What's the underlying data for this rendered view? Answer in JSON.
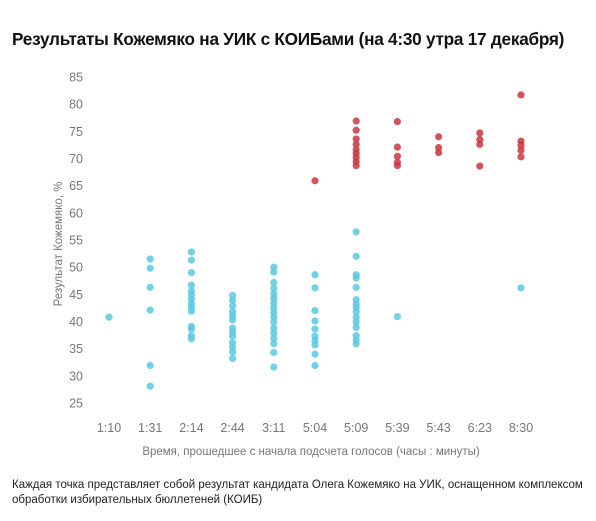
{
  "title": "Результаты Кожемяко на УИК с КОИБами (на 4:30 утра 17 декабря)",
  "note": "Каждая точка представляет собой результат кандидата Олега Кожемяко на УИК, оснащенном комплексом обработки избирательных бюллетеней (КОИБ)",
  "colors": {
    "low": "#5bc8e0",
    "high": "#c9373f"
  },
  "chart_data": {
    "type": "scatter",
    "title": "Результаты Кожемяко на УИК с КОИБами (на 4:30 утра 17 декабря)",
    "xlabel": "Время, прошедшее с начала подсчета голосов (часы : минуты)",
    "ylabel": "Результат Кожемяко, %",
    "categories": [
      "1:10",
      "1:31",
      "2:14",
      "2:44",
      "3:11",
      "5:04",
      "5:09",
      "5:39",
      "5:43",
      "6:23",
      "8:30"
    ],
    "ylim": [
      25,
      85
    ],
    "yticks": [
      25,
      30,
      35,
      40,
      45,
      50,
      55,
      60,
      65,
      70,
      75,
      80,
      85
    ],
    "grid": false,
    "legend": "none",
    "series": [
      {
        "color": "#5bc8e0",
        "points": [
          [
            "1:10",
            40.8
          ],
          [
            "1:31",
            51.5
          ],
          [
            "1:31",
            49.8
          ],
          [
            "1:31",
            46.3
          ],
          [
            "1:31",
            42.1
          ],
          [
            "1:31",
            31.9
          ],
          [
            "1:31",
            28.1
          ],
          [
            "2:14",
            52.8
          ],
          [
            "2:14",
            51.3
          ],
          [
            "2:14",
            49.0
          ],
          [
            "2:14",
            46.7
          ],
          [
            "2:14",
            45.6
          ],
          [
            "2:14",
            44.9
          ],
          [
            "2:14",
            44.1
          ],
          [
            "2:14",
            43.3
          ],
          [
            "2:14",
            42.6
          ],
          [
            "2:14",
            41.9
          ],
          [
            "2:14",
            39.1
          ],
          [
            "2:14",
            38.6
          ],
          [
            "2:14",
            37.4
          ],
          [
            "2:14",
            36.8
          ],
          [
            "2:44",
            44.8
          ],
          [
            "2:44",
            43.9
          ],
          [
            "2:44",
            42.9
          ],
          [
            "2:44",
            41.8
          ],
          [
            "2:44",
            41.0
          ],
          [
            "2:44",
            40.3
          ],
          [
            "2:44",
            38.8
          ],
          [
            "2:44",
            38.1
          ],
          [
            "2:44",
            37.3
          ],
          [
            "2:44",
            36.1
          ],
          [
            "2:44",
            35.2
          ],
          [
            "2:44",
            34.4
          ],
          [
            "2:44",
            33.2
          ],
          [
            "3:11",
            50.0
          ],
          [
            "3:11",
            49.1
          ],
          [
            "3:11",
            47.2
          ],
          [
            "3:11",
            46.1
          ],
          [
            "3:11",
            45.1
          ],
          [
            "3:11",
            44.3
          ],
          [
            "3:11",
            43.4
          ],
          [
            "3:11",
            42.5
          ],
          [
            "3:11",
            41.6
          ],
          [
            "3:11",
            40.8
          ],
          [
            "3:11",
            39.9
          ],
          [
            "3:11",
            38.8
          ],
          [
            "3:11",
            37.9
          ],
          [
            "3:11",
            36.9
          ],
          [
            "3:11",
            35.9
          ],
          [
            "3:11",
            34.3
          ],
          [
            "3:11",
            31.6
          ],
          [
            "5:04",
            48.6
          ],
          [
            "5:04",
            46.2
          ],
          [
            "5:04",
            42.0
          ],
          [
            "5:04",
            40.1
          ],
          [
            "5:04",
            38.6
          ],
          [
            "5:04",
            37.3
          ],
          [
            "5:04",
            36.5
          ],
          [
            "5:04",
            35.7
          ],
          [
            "5:04",
            34.0
          ],
          [
            "5:04",
            31.9
          ],
          [
            "5:09",
            56.5
          ],
          [
            "5:09",
            52.0
          ],
          [
            "5:09",
            48.6
          ],
          [
            "5:09",
            48.0
          ],
          [
            "5:09",
            46.3
          ],
          [
            "5:09",
            44.0
          ],
          [
            "5:09",
            43.2
          ],
          [
            "5:09",
            42.6
          ],
          [
            "5:09",
            41.8
          ],
          [
            "5:09",
            40.8
          ],
          [
            "5:09",
            39.9
          ],
          [
            "5:09",
            38.9
          ],
          [
            "5:09",
            37.4
          ],
          [
            "5:09",
            36.6
          ],
          [
            "5:09",
            35.9
          ],
          [
            "5:39",
            40.9
          ],
          [
            "8:30",
            46.2
          ]
        ]
      },
      {
        "color": "#c9373f",
        "points": [
          [
            "5:04",
            65.9
          ],
          [
            "5:09",
            76.9
          ],
          [
            "5:09",
            75.2
          ],
          [
            "5:09",
            73.6
          ],
          [
            "5:09",
            72.6
          ],
          [
            "5:09",
            71.6
          ],
          [
            "5:09",
            70.9
          ],
          [
            "5:09",
            70.2
          ],
          [
            "5:09",
            69.4
          ],
          [
            "5:09",
            68.7
          ],
          [
            "5:39",
            76.8
          ],
          [
            "5:39",
            72.1
          ],
          [
            "5:39",
            70.4
          ],
          [
            "5:39",
            69.3
          ],
          [
            "5:39",
            68.7
          ],
          [
            "5:43",
            74.0
          ],
          [
            "5:43",
            72.0
          ],
          [
            "5:43",
            71.1
          ],
          [
            "6:23",
            74.7
          ],
          [
            "6:23",
            73.5
          ],
          [
            "6:23",
            72.6
          ],
          [
            "6:23",
            68.6
          ],
          [
            "8:30",
            81.7
          ],
          [
            "8:30",
            73.2
          ],
          [
            "8:30",
            72.4
          ],
          [
            "8:30",
            71.5
          ],
          [
            "8:30",
            70.3
          ]
        ]
      }
    ]
  }
}
